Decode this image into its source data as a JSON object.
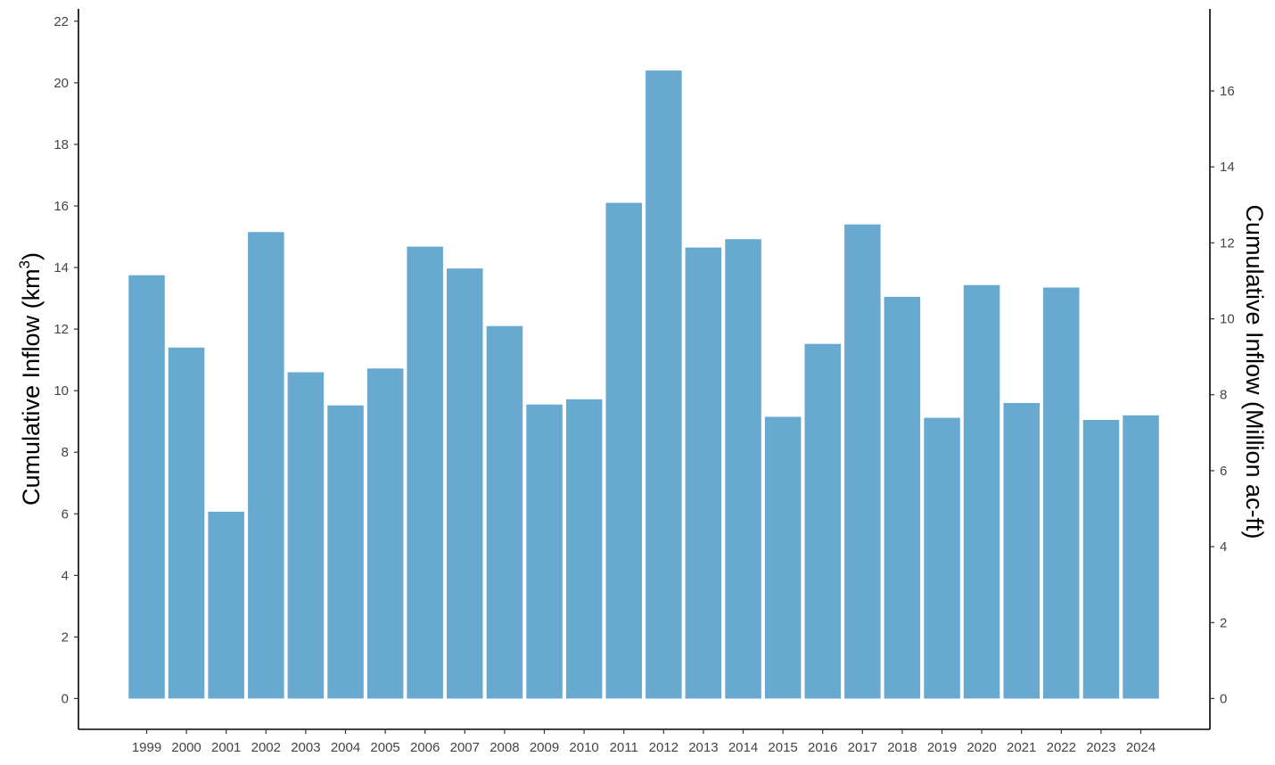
{
  "chart_data": {
    "type": "bar",
    "categories": [
      "1999",
      "2000",
      "2001",
      "2002",
      "2003",
      "2004",
      "2005",
      "2006",
      "2007",
      "2008",
      "2009",
      "2010",
      "2011",
      "2012",
      "2013",
      "2014",
      "2015",
      "2016",
      "2017",
      "2018",
      "2019",
      "2020",
      "2021",
      "2022",
      "2023",
      "2024"
    ],
    "values": [
      13.75,
      11.4,
      6.07,
      15.15,
      10.6,
      9.52,
      10.72,
      14.68,
      13.97,
      12.1,
      9.55,
      9.72,
      16.1,
      20.4,
      14.65,
      14.92,
      9.15,
      11.52,
      15.4,
      13.05,
      9.12,
      13.43,
      9.6,
      13.35,
      9.05,
      9.2
    ],
    "color": "#67a9cf",
    "title": "",
    "xlabel": "",
    "ylabel": "Cumulative Inflow  (km",
    "ylabel_superscript": "3",
    "ylabel_suffix": ")",
    "ylim": [
      -1,
      22.4
    ],
    "yticks": [
      0,
      2,
      4,
      6,
      8,
      10,
      12,
      14,
      16,
      18,
      20,
      22
    ],
    "y2label": "Cumulative Inflow (Million ac-ft)",
    "y2_per_y": 0.8107,
    "y2ticks": [
      0,
      2,
      4,
      6,
      8,
      10,
      12,
      14,
      16
    ],
    "grid": false,
    "legend": "none"
  }
}
